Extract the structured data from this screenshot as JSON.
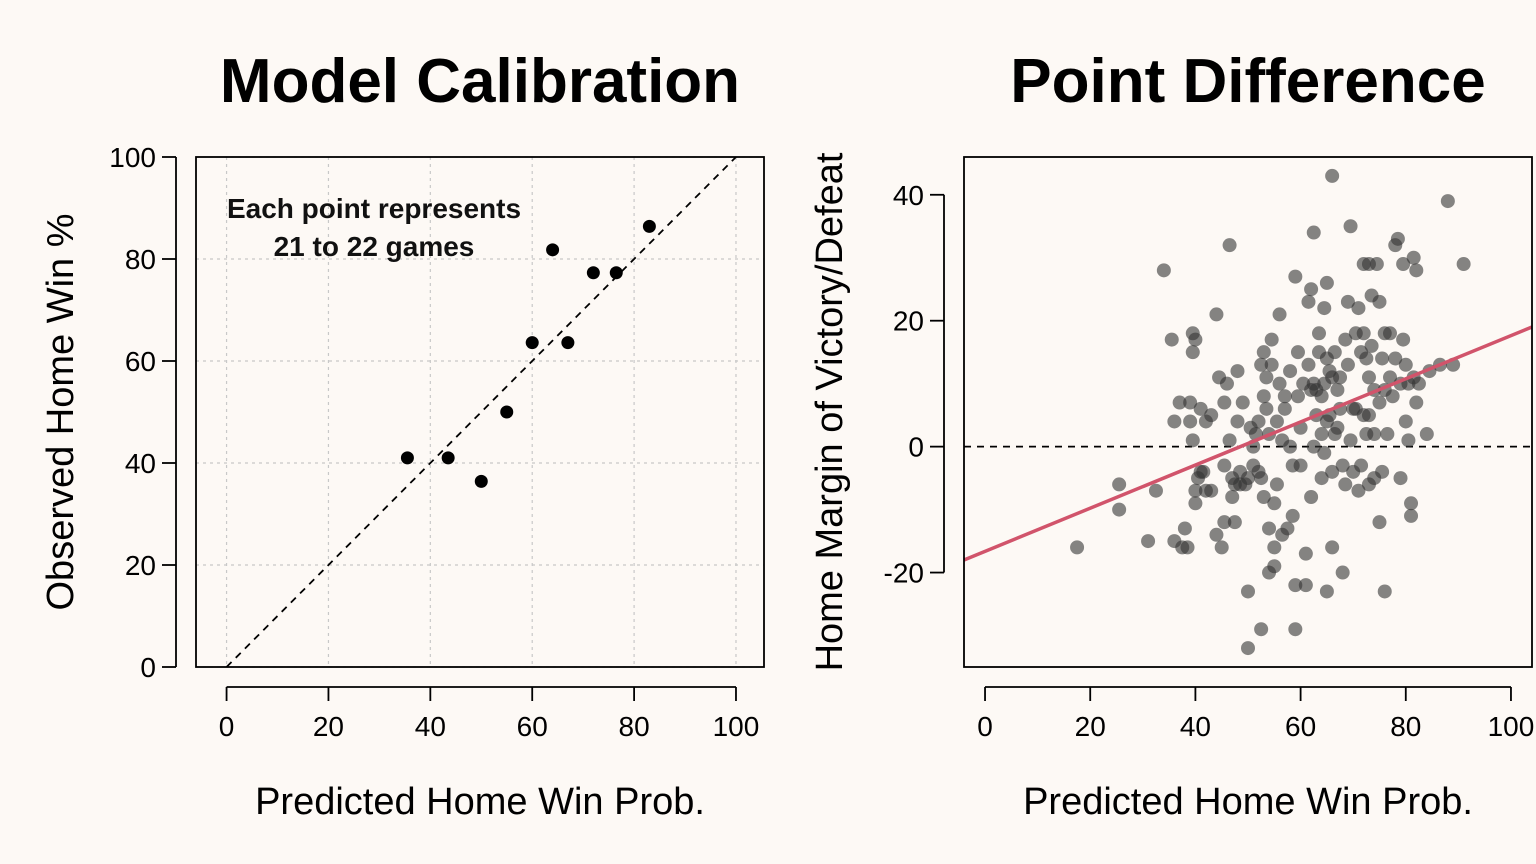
{
  "chart_data": [
    {
      "type": "scatter",
      "title": "Model Calibration",
      "xlabel": "Predicted Home Win Prob.",
      "ylabel": "Observed Home Win %",
      "xlim": [
        -6,
        105.5
      ],
      "ylim": [
        0,
        100
      ],
      "xticks": [
        0,
        20,
        40,
        60,
        80,
        100
      ],
      "yticks": [
        0,
        20,
        40,
        60,
        80,
        100
      ],
      "grid": true,
      "annotation": [
        "Each point represents",
        "21 to 22 games"
      ],
      "reference_line": {
        "type": "identity",
        "style": "dashed",
        "color": "#000000"
      },
      "point_color": "#000000",
      "points": [
        {
          "x": 35.5,
          "y": 41
        },
        {
          "x": 43.5,
          "y": 41
        },
        {
          "x": 50,
          "y": 36.4
        },
        {
          "x": 55,
          "y": 50
        },
        {
          "x": 60,
          "y": 63.6
        },
        {
          "x": 64,
          "y": 81.8
        },
        {
          "x": 67,
          "y": 63.6
        },
        {
          "x": 72,
          "y": 77.3
        },
        {
          "x": 76.5,
          "y": 77.3
        },
        {
          "x": 83,
          "y": 86.4
        }
      ]
    },
    {
      "type": "scatter",
      "title": "Point Difference",
      "xlabel": "Predicted Home Win Prob.",
      "ylabel": "Home Margin of Victory/Defeat",
      "xlim": [
        -4,
        104
      ],
      "ylim": [
        -35,
        46
      ],
      "xticks": [
        0,
        20,
        40,
        60,
        80,
        100
      ],
      "yticks": [
        -20,
        0,
        20,
        40
      ],
      "grid": false,
      "zero_line": {
        "y": 0,
        "style": "dashed",
        "color": "#000000"
      },
      "point_color": "#333333",
      "fit_line": {
        "color": "#d1546b",
        "x1": -4,
        "y1": -18,
        "x2": 104,
        "y2": 19
      },
      "points": [
        {
          "x": 17.5,
          "y": -16
        },
        {
          "x": 25.5,
          "y": -6
        },
        {
          "x": 25.5,
          "y": -10
        },
        {
          "x": 31,
          "y": -15
        },
        {
          "x": 32.5,
          "y": -7
        },
        {
          "x": 34,
          "y": 28
        },
        {
          "x": 35.5,
          "y": 17
        },
        {
          "x": 36,
          "y": 4
        },
        {
          "x": 36,
          "y": -15
        },
        {
          "x": 37,
          "y": 7
        },
        {
          "x": 37.5,
          "y": -16
        },
        {
          "x": 38,
          "y": -13
        },
        {
          "x": 38.5,
          "y": -16
        },
        {
          "x": 39,
          "y": 4
        },
        {
          "x": 39,
          "y": 7
        },
        {
          "x": 39.5,
          "y": 1
        },
        {
          "x": 39.5,
          "y": 18
        },
        {
          "x": 39.5,
          "y": 15
        },
        {
          "x": 40,
          "y": 17
        },
        {
          "x": 40,
          "y": -9
        },
        {
          "x": 40,
          "y": -7
        },
        {
          "x": 40.5,
          "y": -5
        },
        {
          "x": 41,
          "y": 6
        },
        {
          "x": 41,
          "y": -4
        },
        {
          "x": 41.5,
          "y": -4
        },
        {
          "x": 42,
          "y": 4
        },
        {
          "x": 42,
          "y": -7
        },
        {
          "x": 43,
          "y": -7
        },
        {
          "x": 43,
          "y": 5
        },
        {
          "x": 44,
          "y": -14
        },
        {
          "x": 44,
          "y": 21
        },
        {
          "x": 44.5,
          "y": 11
        },
        {
          "x": 45,
          "y": -16
        },
        {
          "x": 45.5,
          "y": -12
        },
        {
          "x": 45.5,
          "y": -3
        },
        {
          "x": 45.5,
          "y": 7
        },
        {
          "x": 46,
          "y": 10
        },
        {
          "x": 46.5,
          "y": 32
        },
        {
          "x": 46.5,
          "y": 1
        },
        {
          "x": 47,
          "y": -8
        },
        {
          "x": 47,
          "y": -5
        },
        {
          "x": 47.5,
          "y": -12
        },
        {
          "x": 47.5,
          "y": -6
        },
        {
          "x": 48,
          "y": 12
        },
        {
          "x": 48,
          "y": 4
        },
        {
          "x": 48.5,
          "y": -6
        },
        {
          "x": 48.5,
          "y": -4
        },
        {
          "x": 49,
          "y": 7
        },
        {
          "x": 49.5,
          "y": -6
        },
        {
          "x": 50,
          "y": -32
        },
        {
          "x": 50,
          "y": -23
        },
        {
          "x": 50,
          "y": -5
        },
        {
          "x": 50.5,
          "y": 3
        },
        {
          "x": 51,
          "y": 0
        },
        {
          "x": 51,
          "y": -3
        },
        {
          "x": 51.5,
          "y": 2
        },
        {
          "x": 52,
          "y": 4
        },
        {
          "x": 52,
          "y": -4
        },
        {
          "x": 52.5,
          "y": 13
        },
        {
          "x": 52.5,
          "y": -5
        },
        {
          "x": 52.5,
          "y": -29
        },
        {
          "x": 53,
          "y": 15
        },
        {
          "x": 53,
          "y": 8
        },
        {
          "x": 53,
          "y": -8
        },
        {
          "x": 53.5,
          "y": 11
        },
        {
          "x": 53.5,
          "y": 6
        },
        {
          "x": 54,
          "y": 2
        },
        {
          "x": 54,
          "y": -13
        },
        {
          "x": 54,
          "y": -20
        },
        {
          "x": 54.5,
          "y": 17
        },
        {
          "x": 54.5,
          "y": 13
        },
        {
          "x": 55,
          "y": -19
        },
        {
          "x": 55,
          "y": -16
        },
        {
          "x": 55,
          "y": -9
        },
        {
          "x": 55.5,
          "y": -6
        },
        {
          "x": 55.5,
          "y": 4
        },
        {
          "x": 56,
          "y": 21
        },
        {
          "x": 56,
          "y": 10
        },
        {
          "x": 56.5,
          "y": 1
        },
        {
          "x": 56.5,
          "y": -14
        },
        {
          "x": 57,
          "y": 8
        },
        {
          "x": 57,
          "y": 6
        },
        {
          "x": 57.5,
          "y": -13
        },
        {
          "x": 58,
          "y": 12
        },
        {
          "x": 58,
          "y": 0
        },
        {
          "x": 58.5,
          "y": -11
        },
        {
          "x": 58.5,
          "y": -3
        },
        {
          "x": 59,
          "y": 27
        },
        {
          "x": 59,
          "y": -22
        },
        {
          "x": 59,
          "y": -29
        },
        {
          "x": 59.5,
          "y": 15
        },
        {
          "x": 59.5,
          "y": 8
        },
        {
          "x": 60,
          "y": -3
        },
        {
          "x": 60,
          "y": 3
        },
        {
          "x": 60.5,
          "y": 10
        },
        {
          "x": 61,
          "y": -17
        },
        {
          "x": 61,
          "y": -22
        },
        {
          "x": 61.5,
          "y": 23
        },
        {
          "x": 61.5,
          "y": 13
        },
        {
          "x": 62,
          "y": 25
        },
        {
          "x": 62,
          "y": 9
        },
        {
          "x": 62,
          "y": -8
        },
        {
          "x": 62.5,
          "y": 34
        },
        {
          "x": 62.5,
          "y": 10
        },
        {
          "x": 62.5,
          "y": 0
        },
        {
          "x": 63,
          "y": 9
        },
        {
          "x": 63,
          "y": 5
        },
        {
          "x": 63.5,
          "y": 18
        },
        {
          "x": 63.5,
          "y": 15
        },
        {
          "x": 64,
          "y": 8
        },
        {
          "x": 64,
          "y": 2
        },
        {
          "x": 64,
          "y": -5
        },
        {
          "x": 64.5,
          "y": 22
        },
        {
          "x": 64.5,
          "y": 10
        },
        {
          "x": 64.5,
          "y": -1
        },
        {
          "x": 65,
          "y": 26
        },
        {
          "x": 65,
          "y": 14
        },
        {
          "x": 65,
          "y": 4
        },
        {
          "x": 65,
          "y": -23
        },
        {
          "x": 65.5,
          "y": 12
        },
        {
          "x": 65.5,
          "y": 5
        },
        {
          "x": 66,
          "y": 43
        },
        {
          "x": 66,
          "y": 11
        },
        {
          "x": 66,
          "y": -16
        },
        {
          "x": 66,
          "y": -4
        },
        {
          "x": 66.5,
          "y": 15
        },
        {
          "x": 66.5,
          "y": 2
        },
        {
          "x": 67,
          "y": 9
        },
        {
          "x": 67,
          "y": 3
        },
        {
          "x": 67.5,
          "y": 11
        },
        {
          "x": 67.5,
          "y": 6
        },
        {
          "x": 68,
          "y": -3
        },
        {
          "x": 68,
          "y": -20
        },
        {
          "x": 68.5,
          "y": 17
        },
        {
          "x": 68.5,
          "y": -6
        },
        {
          "x": 69,
          "y": 23
        },
        {
          "x": 69,
          "y": 13
        },
        {
          "x": 69.5,
          "y": 35
        },
        {
          "x": 69.5,
          "y": 1
        },
        {
          "x": 70,
          "y": 6
        },
        {
          "x": 70,
          "y": -4
        },
        {
          "x": 70.5,
          "y": 18
        },
        {
          "x": 70.5,
          "y": 6
        },
        {
          "x": 71,
          "y": 22
        },
        {
          "x": 71,
          "y": -7
        },
        {
          "x": 71.5,
          "y": 15
        },
        {
          "x": 71.5,
          "y": -3
        },
        {
          "x": 72,
          "y": 29
        },
        {
          "x": 72,
          "y": 18
        },
        {
          "x": 72,
          "y": 5
        },
        {
          "x": 72.5,
          "y": 14
        },
        {
          "x": 72.5,
          "y": 2
        },
        {
          "x": 73,
          "y": 29
        },
        {
          "x": 73,
          "y": 11
        },
        {
          "x": 73,
          "y": 5
        },
        {
          "x": 73,
          "y": -6
        },
        {
          "x": 73.5,
          "y": 24
        },
        {
          "x": 73.5,
          "y": 16
        },
        {
          "x": 74,
          "y": 9
        },
        {
          "x": 74,
          "y": 2
        },
        {
          "x": 74,
          "y": -5
        },
        {
          "x": 74.5,
          "y": 29
        },
        {
          "x": 75,
          "y": 23
        },
        {
          "x": 75,
          "y": 7
        },
        {
          "x": 75,
          "y": -12
        },
        {
          "x": 75.5,
          "y": 14
        },
        {
          "x": 75.5,
          "y": -4
        },
        {
          "x": 76,
          "y": 18
        },
        {
          "x": 76,
          "y": 9
        },
        {
          "x": 76,
          "y": -23
        },
        {
          "x": 76.5,
          "y": 2
        },
        {
          "x": 77,
          "y": 18
        },
        {
          "x": 77,
          "y": 11
        },
        {
          "x": 77.5,
          "y": 8
        },
        {
          "x": 78,
          "y": 32
        },
        {
          "x": 78,
          "y": 14
        },
        {
          "x": 78.5,
          "y": 33
        },
        {
          "x": 79,
          "y": 10
        },
        {
          "x": 79,
          "y": -5
        },
        {
          "x": 79.5,
          "y": 17
        },
        {
          "x": 79.5,
          "y": 29
        },
        {
          "x": 80,
          "y": 13
        },
        {
          "x": 80,
          "y": 4
        },
        {
          "x": 80.5,
          "y": 10
        },
        {
          "x": 80.5,
          "y": 1
        },
        {
          "x": 81,
          "y": -9
        },
        {
          "x": 81,
          "y": -11
        },
        {
          "x": 81.5,
          "y": 30
        },
        {
          "x": 81.5,
          "y": 11
        },
        {
          "x": 82,
          "y": 7
        },
        {
          "x": 82,
          "y": 28
        },
        {
          "x": 82.5,
          "y": 10
        },
        {
          "x": 84,
          "y": 2
        },
        {
          "x": 84.5,
          "y": 12
        },
        {
          "x": 86.5,
          "y": 13
        },
        {
          "x": 88,
          "y": 39
        },
        {
          "x": 89,
          "y": 13
        },
        {
          "x": 91,
          "y": 29
        }
      ]
    }
  ]
}
